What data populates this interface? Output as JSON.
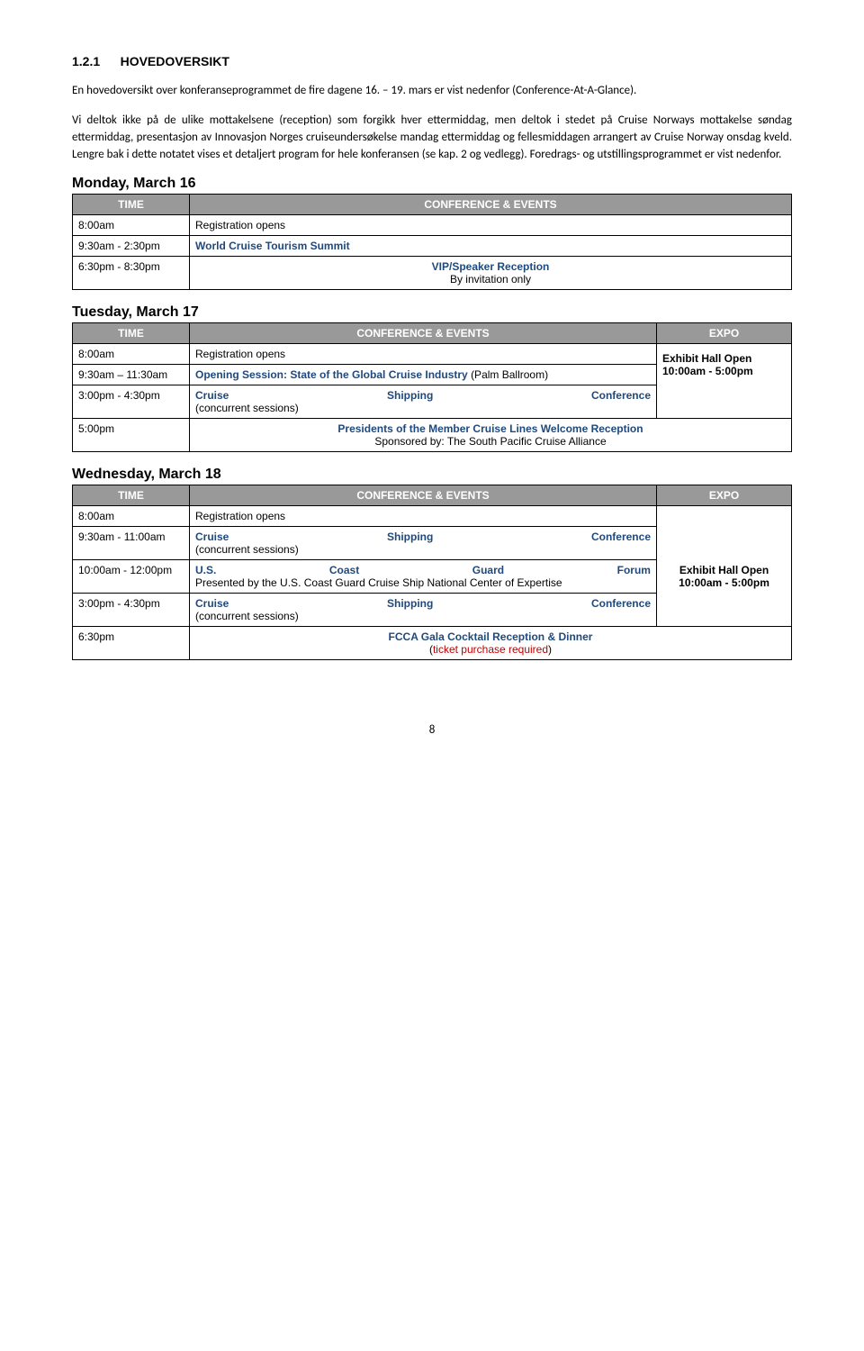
{
  "heading": {
    "num": "1.2.1",
    "title": "HOVEDOVERSIKT"
  },
  "paragraphs": {
    "p1": "En hovedoversikt over konferanseprogrammet de fire dagene 16. – 19. mars er vist nedenfor (Conference-At-A-Glance).",
    "p2": "Vi deltok ikke på de ulike mottakelsene (reception) som forgikk hver ettermiddag, men deltok i stedet på Cruise Norways mottakelse søndag ettermiddag, presentasjon av Innovasjon Norges cruiseundersøkelse mandag ettermiddag og fellesmiddagen arrangert av Cruise Norway onsdag kveld. Lengre bak i dette notatet vises et detaljert program for hele konferansen (se kap. 2 og vedlegg). Foredrags- og utstillingsprogrammet er vist nedenfor."
  },
  "days": {
    "monday": {
      "title": "Monday, March 16",
      "headers": {
        "time": "TIME",
        "events": "CONFERENCE & EVENTS"
      },
      "rows": [
        {
          "time": "8:00am",
          "event": "Registration opens"
        },
        {
          "time": "9:30am - 2:30pm",
          "event": "World Cruise Tourism Summit"
        },
        {
          "time": "6:30pm - 8:30pm",
          "event_line1": "VIP/Speaker Reception",
          "event_line2": "By invitation only"
        }
      ]
    },
    "tuesday": {
      "title": "Tuesday, March 17",
      "headers": {
        "time": "TIME",
        "events": "CONFERENCE & EVENTS",
        "expo": "EXPO"
      },
      "rows": [
        {
          "time": "8:00am",
          "event": "Registration opens"
        },
        {
          "time": "9:30am – 11:30am",
          "event_bold": "Opening Session: State of the Global Cruise Industry",
          "event_plain": "(Palm Ballroom)",
          "expo_line1": "Exhibit Hall Open",
          "expo_line2": "10:00am - 5:00pm"
        },
        {
          "time": "3:00pm - 4:30pm",
          "event_lt": "Cruise",
          "event_mid": "Shipping",
          "event_rt": "Conference",
          "event_plain": "(concurrent sessions)"
        },
        {
          "time": "5:00pm",
          "event_line1": "Presidents of the Member Cruise Lines Welcome Reception",
          "event_line2": "Sponsored by: The South Pacific Cruise Alliance"
        }
      ]
    },
    "wednesday": {
      "title": "Wednesday, March 18",
      "headers": {
        "time": "TIME",
        "events": "CONFERENCE & EVENTS",
        "expo": "EXPO"
      },
      "rows": [
        {
          "time": "8:00am",
          "event": "Registration opens"
        },
        {
          "time": "9:30am - 11:00am",
          "event_lt": "Cruise",
          "event_mid": "Shipping",
          "event_rt": "Conference",
          "event_plain": "(concurrent sessions)"
        },
        {
          "time": "10:00am - 12:00pm",
          "event_lt": "U.S.",
          "event_mid": "Coast",
          "event_mid2": "Guard",
          "event_rt": "Forum",
          "event_plain": "Presented by the U.S. Coast Guard Cruise Ship National Center of Expertise",
          "expo_line1": "Exhibit Hall Open",
          "expo_line2": "10:00am - 5:00pm"
        },
        {
          "time": "3:00pm - 4:30pm",
          "event_lt": "Cruise",
          "event_mid": "Shipping",
          "event_rt": "Conference",
          "event_plain": "(concurrent sessions)"
        },
        {
          "time": "6:30pm",
          "event_line1": "FCCA Gala Cocktail Reception & Dinner",
          "event_line2_pre": "(",
          "event_line2_red": "ticket purchase required",
          "event_line2_post": ")"
        }
      ]
    }
  },
  "page_number": "8"
}
